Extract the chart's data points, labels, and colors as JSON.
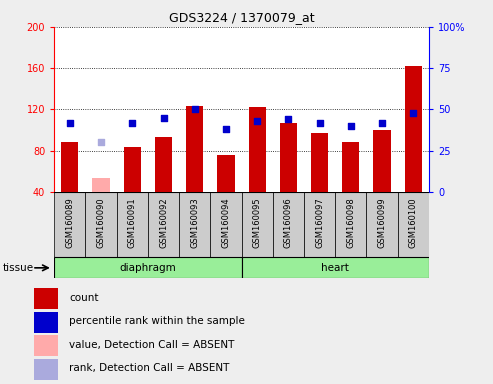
{
  "title": "GDS3224 / 1370079_at",
  "samples": [
    "GSM160089",
    "GSM160090",
    "GSM160091",
    "GSM160092",
    "GSM160093",
    "GSM160094",
    "GSM160095",
    "GSM160096",
    "GSM160097",
    "GSM160098",
    "GSM160099",
    "GSM160100"
  ],
  "count_values": [
    88,
    0,
    84,
    93,
    123,
    76,
    122,
    107,
    97,
    88,
    100,
    162
  ],
  "rank_values": [
    42,
    0,
    42,
    45,
    50,
    38,
    43,
    44,
    42,
    40,
    42,
    48
  ],
  "absent_count": [
    0,
    54,
    0,
    0,
    0,
    0,
    0,
    0,
    0,
    0,
    0,
    0
  ],
  "absent_rank": [
    0,
    30,
    0,
    0,
    0,
    0,
    0,
    0,
    0,
    0,
    0,
    0
  ],
  "detection_absent": [
    false,
    true,
    false,
    false,
    false,
    false,
    false,
    false,
    false,
    false,
    false,
    false
  ],
  "ylim_left": [
    40,
    200
  ],
  "ylim_right": [
    0,
    100
  ],
  "yticks_left": [
    40,
    80,
    120,
    160,
    200
  ],
  "yticks_right": [
    0,
    25,
    50,
    75,
    100
  ],
  "bar_color_present": "#cc0000",
  "bar_color_absent": "#ffaaaa",
  "dot_color_present": "#0000cc",
  "dot_color_absent": "#aaaadd",
  "bg_color": "#eeeeee",
  "plot_bg": "#ffffff",
  "tick_box_color": "#cccccc",
  "group_color": "#99ee99",
  "diaphragm_range": [
    0,
    5
  ],
  "heart_range": [
    6,
    11
  ],
  "legend_items": [
    {
      "label": "count",
      "color": "#cc0000"
    },
    {
      "label": "percentile rank within the sample",
      "color": "#0000cc"
    },
    {
      "label": "value, Detection Call = ABSENT",
      "color": "#ffaaaa"
    },
    {
      "label": "rank, Detection Call = ABSENT",
      "color": "#aaaadd"
    }
  ]
}
